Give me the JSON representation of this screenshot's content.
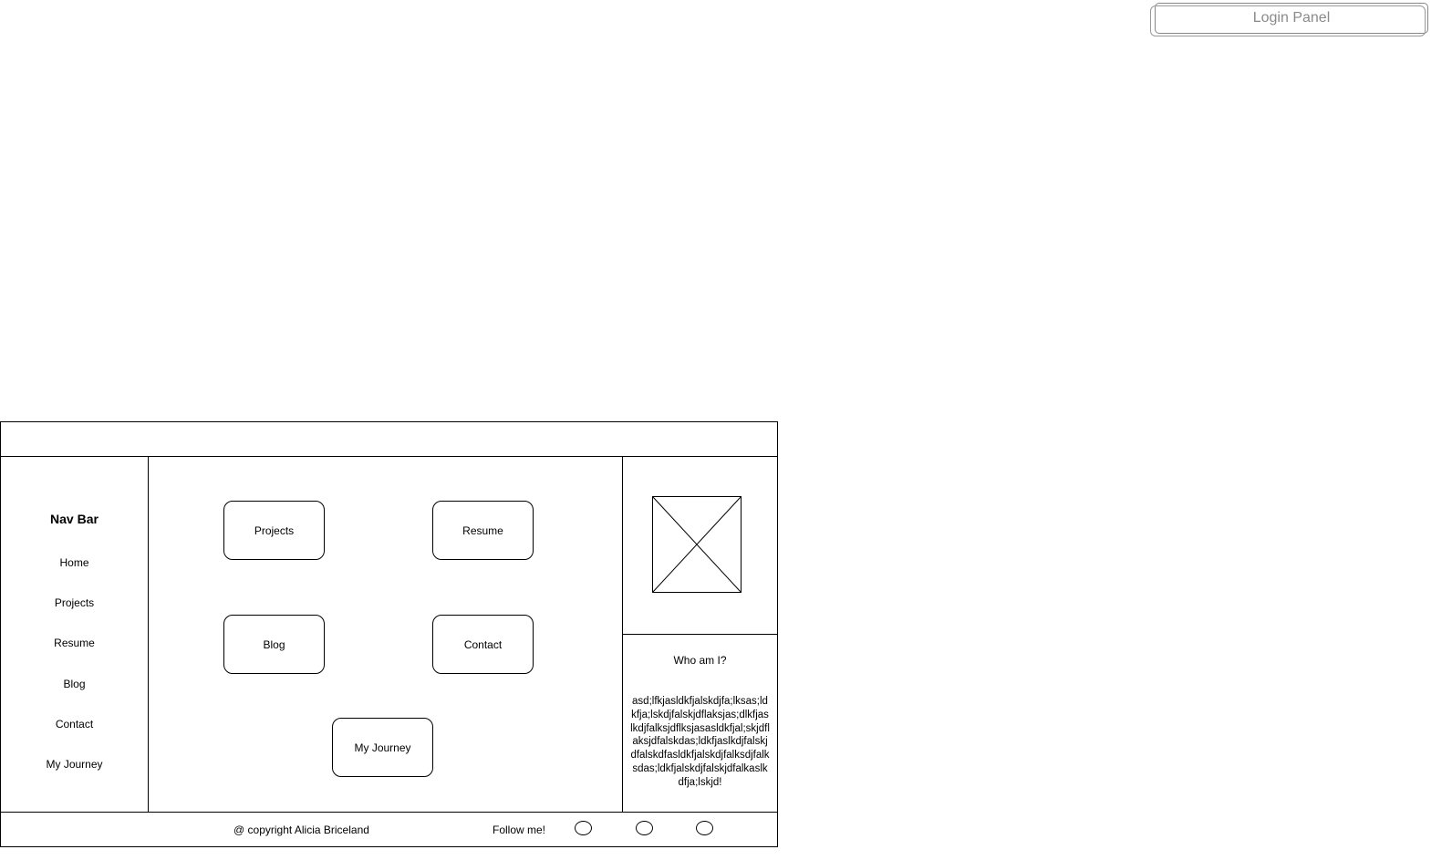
{
  "login_panel": {
    "label": "Login Panel"
  },
  "nav": {
    "title": "Nav Bar",
    "items": [
      {
        "label": "Home"
      },
      {
        "label": "Projects"
      },
      {
        "label": "Resume"
      },
      {
        "label": "Blog"
      },
      {
        "label": "Contact"
      },
      {
        "label": "My Journey"
      }
    ]
  },
  "main": {
    "buttons": [
      {
        "label": "Projects"
      },
      {
        "label": "Resume"
      },
      {
        "label": "Blog"
      },
      {
        "label": "Contact"
      },
      {
        "label": "My Journey"
      }
    ]
  },
  "about": {
    "title": "Who am I?",
    "text": "asd;lfkjasldkfjalskdjfa;lksas;ldkfja;lskdjfalskjdflaksjas;dlkfjaslkdjfalksjdflksjasasldkfjal;skjdflaksjdfalskdas;ldkfjaslkdjfalskjdfalskdfasldkfjalskdjfalksdjfalksdas;ldkfjalskdjfalskjdfalkaslkdfja;lskjd!"
  },
  "footer": {
    "copyright": "@ copyright Alicia Briceland",
    "follow_label": "Follow me!"
  }
}
